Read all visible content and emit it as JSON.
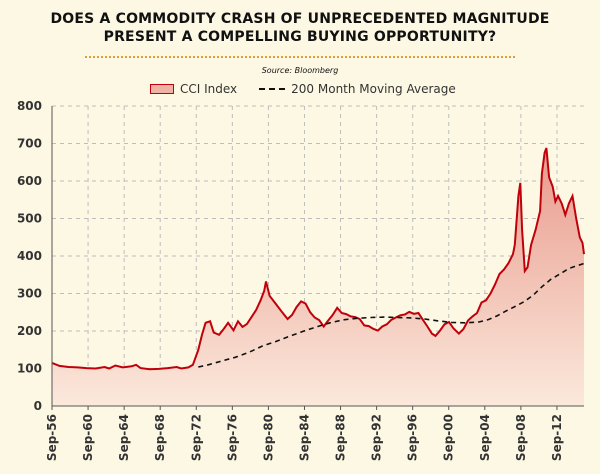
{
  "title_lines": [
    "DOES A COMMODITY CRASH OF UNPRECEDENTED MAGNITUDE",
    "PRESENT A COMPELLING BUYING OPPORTUNITY?"
  ],
  "source": "Source: Bloomberg",
  "colors": {
    "background": "#fdf8e4",
    "cci_line": "#c0000a",
    "cci_fill_top": "#e89a8c",
    "cci_fill_bottom": "#fbe9dc",
    "moving_average": "#111111",
    "grid": "#bdbdbd",
    "divider": "#d9a03a"
  },
  "chart_data": {
    "type": "area",
    "xlabel": "",
    "ylabel": "",
    "ylim": [
      0,
      800
    ],
    "yticks": [
      0,
      100,
      200,
      300,
      400,
      500,
      600,
      700,
      800
    ],
    "xlim": [
      1956.67,
      2015.67
    ],
    "xticks": [
      "Sep-56",
      "Sep-60",
      "Sep-64",
      "Sep-68",
      "Sep-72",
      "Sep-76",
      "Sep-80",
      "Sep-84",
      "Sep-88",
      "Sep-92",
      "Sep-96",
      "Sep-00",
      "Sep-04",
      "Sep-08",
      "Sep-12"
    ],
    "xtick_years": [
      1956.67,
      1960.67,
      1964.67,
      1968.67,
      1972.67,
      1976.67,
      1980.67,
      1984.67,
      1988.67,
      1992.67,
      1996.67,
      2000.67,
      2004.67,
      2008.67,
      2012.67
    ],
    "grid": true,
    "legend_position": "top",
    "series": [
      {
        "name": "CCI Index",
        "style": "filled-area",
        "points": [
          [
            1956.67,
            115
          ],
          [
            1957.5,
            107
          ],
          [
            1958.5,
            104
          ],
          [
            1959.5,
            103
          ],
          [
            1960.5,
            101
          ],
          [
            1961.5,
            100
          ],
          [
            1962.5,
            104
          ],
          [
            1963.0,
            100
          ],
          [
            1963.7,
            108
          ],
          [
            1964.5,
            103
          ],
          [
            1965.5,
            106
          ],
          [
            1966.0,
            110
          ],
          [
            1966.5,
            101
          ],
          [
            1967.5,
            98
          ],
          [
            1968.5,
            99
          ],
          [
            1969.5,
            101
          ],
          [
            1970.5,
            104
          ],
          [
            1971.0,
            100
          ],
          [
            1971.8,
            103
          ],
          [
            1972.3,
            110
          ],
          [
            1972.9,
            150
          ],
          [
            1973.3,
            190
          ],
          [
            1973.7,
            222
          ],
          [
            1974.2,
            226
          ],
          [
            1974.6,
            196
          ],
          [
            1975.2,
            190
          ],
          [
            1975.7,
            205
          ],
          [
            1976.2,
            222
          ],
          [
            1976.8,
            202
          ],
          [
            1977.3,
            226
          ],
          [
            1977.8,
            211
          ],
          [
            1978.3,
            219
          ],
          [
            1978.8,
            237
          ],
          [
            1979.3,
            256
          ],
          [
            1979.8,
            282
          ],
          [
            1980.2,
            307
          ],
          [
            1980.4,
            332
          ],
          [
            1980.8,
            294
          ],
          [
            1981.5,
            272
          ],
          [
            1982.2,
            250
          ],
          [
            1982.8,
            232
          ],
          [
            1983.3,
            243
          ],
          [
            1983.8,
            264
          ],
          [
            1984.3,
            279
          ],
          [
            1984.8,
            273
          ],
          [
            1985.3,
            250
          ],
          [
            1985.8,
            236
          ],
          [
            1986.3,
            229
          ],
          [
            1986.8,
            212
          ],
          [
            1987.3,
            228
          ],
          [
            1987.8,
            243
          ],
          [
            1988.3,
            262
          ],
          [
            1988.8,
            248
          ],
          [
            1989.3,
            245
          ],
          [
            1989.8,
            239
          ],
          [
            1990.3,
            237
          ],
          [
            1990.8,
            232
          ],
          [
            1991.3,
            215
          ],
          [
            1991.8,
            213
          ],
          [
            1992.3,
            206
          ],
          [
            1992.8,
            201
          ],
          [
            1993.3,
            212
          ],
          [
            1993.8,
            218
          ],
          [
            1994.3,
            230
          ],
          [
            1994.8,
            236
          ],
          [
            1995.3,
            242
          ],
          [
            1995.8,
            244
          ],
          [
            1996.3,
            251
          ],
          [
            1996.8,
            246
          ],
          [
            1997.3,
            248
          ],
          [
            1997.8,
            230
          ],
          [
            1998.3,
            212
          ],
          [
            1998.8,
            193
          ],
          [
            1999.2,
            187
          ],
          [
            1999.7,
            201
          ],
          [
            2000.2,
            218
          ],
          [
            2000.7,
            224
          ],
          [
            2001.2,
            207
          ],
          [
            2001.8,
            193
          ],
          [
            2002.3,
            205
          ],
          [
            2002.8,
            228
          ],
          [
            2003.3,
            239
          ],
          [
            2003.8,
            248
          ],
          [
            2004.3,
            276
          ],
          [
            2004.8,
            282
          ],
          [
            2005.3,
            300
          ],
          [
            2005.8,
            324
          ],
          [
            2006.3,
            352
          ],
          [
            2006.8,
            364
          ],
          [
            2007.3,
            381
          ],
          [
            2007.8,
            405
          ],
          [
            2008.0,
            430
          ],
          [
            2008.4,
            560
          ],
          [
            2008.6,
            595
          ],
          [
            2008.8,
            470
          ],
          [
            2009.1,
            360
          ],
          [
            2009.4,
            370
          ],
          [
            2009.8,
            430
          ],
          [
            2010.3,
            470
          ],
          [
            2010.8,
            520
          ],
          [
            2011.0,
            620
          ],
          [
            2011.3,
            675
          ],
          [
            2011.5,
            688
          ],
          [
            2011.8,
            610
          ],
          [
            2012.2,
            585
          ],
          [
            2012.5,
            545
          ],
          [
            2012.8,
            560
          ],
          [
            2013.2,
            540
          ],
          [
            2013.6,
            510
          ],
          [
            2014.0,
            540
          ],
          [
            2014.4,
            560
          ],
          [
            2014.8,
            500
          ],
          [
            2015.2,
            450
          ],
          [
            2015.5,
            435
          ],
          [
            2015.67,
            405
          ]
        ]
      },
      {
        "name": "200 Month Moving Average",
        "style": "dashed-line",
        "points": [
          [
            1972.9,
            104
          ],
          [
            1974.0,
            110
          ],
          [
            1975.5,
            120
          ],
          [
            1977.0,
            130
          ],
          [
            1978.5,
            143
          ],
          [
            1980.0,
            160
          ],
          [
            1981.5,
            172
          ],
          [
            1983.0,
            186
          ],
          [
            1984.5,
            199
          ],
          [
            1986.0,
            211
          ],
          [
            1987.5,
            222
          ],
          [
            1989.0,
            230
          ],
          [
            1990.5,
            234
          ],
          [
            1992.0,
            236
          ],
          [
            1993.5,
            237
          ],
          [
            1995.0,
            236
          ],
          [
            1996.5,
            235
          ],
          [
            1998.0,
            232
          ],
          [
            1999.5,
            227
          ],
          [
            2001.0,
            223
          ],
          [
            2002.5,
            222
          ],
          [
            2004.0,
            224
          ],
          [
            2005.0,
            230
          ],
          [
            2006.0,
            240
          ],
          [
            2007.0,
            253
          ],
          [
            2008.0,
            265
          ],
          [
            2009.0,
            278
          ],
          [
            2010.0,
            295
          ],
          [
            2011.0,
            318
          ],
          [
            2012.0,
            338
          ],
          [
            2013.0,
            352
          ],
          [
            2014.0,
            367
          ],
          [
            2015.67,
            380
          ]
        ]
      }
    ]
  }
}
